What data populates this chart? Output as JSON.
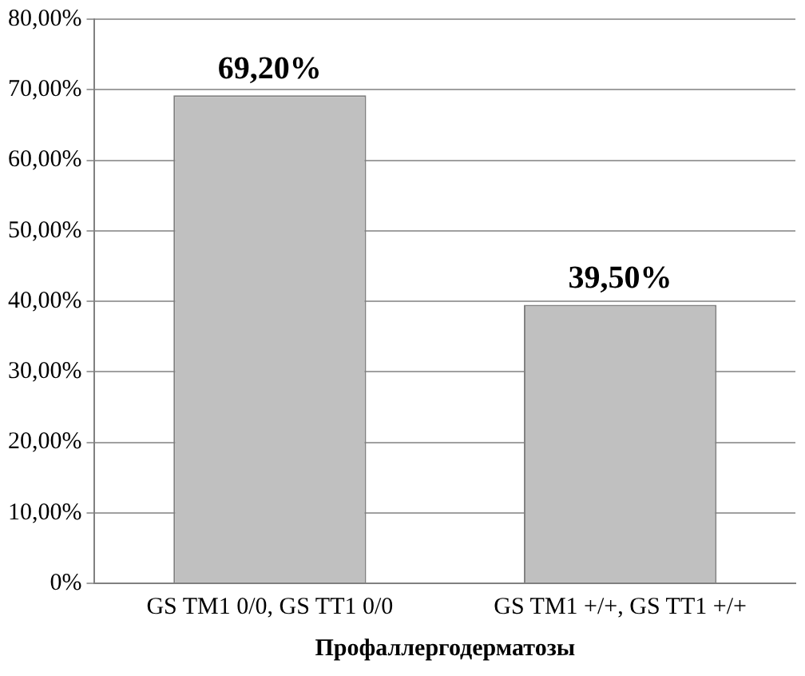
{
  "chart_data": {
    "type": "bar",
    "xlabel": "Профаллергодерматозы",
    "categories": [
      "GS TM1 0/0, GS TT1 0/0",
      "GS TM1 +/+, GS TT1 +/+"
    ],
    "values": [
      69.2,
      39.5
    ],
    "color": "#c0c0c0",
    "value_labels": [
      "69,20%",
      "39,50%"
    ],
    "ylim": [
      0,
      80
    ],
    "yticks": [
      {
        "value": 0,
        "label": "0%"
      },
      {
        "value": 10,
        "label": "10,00%"
      },
      {
        "value": 20,
        "label": "20,00%"
      },
      {
        "value": 30,
        "label": "30,00%"
      },
      {
        "value": 40,
        "label": "40,00%"
      },
      {
        "value": 50,
        "label": "50,00%"
      },
      {
        "value": 60,
        "label": "60,00%"
      },
      {
        "value": 70,
        "label": "70,00%"
      },
      {
        "value": 80,
        "label": "80,00%"
      }
    ],
    "grid": "y",
    "legend": false
  }
}
